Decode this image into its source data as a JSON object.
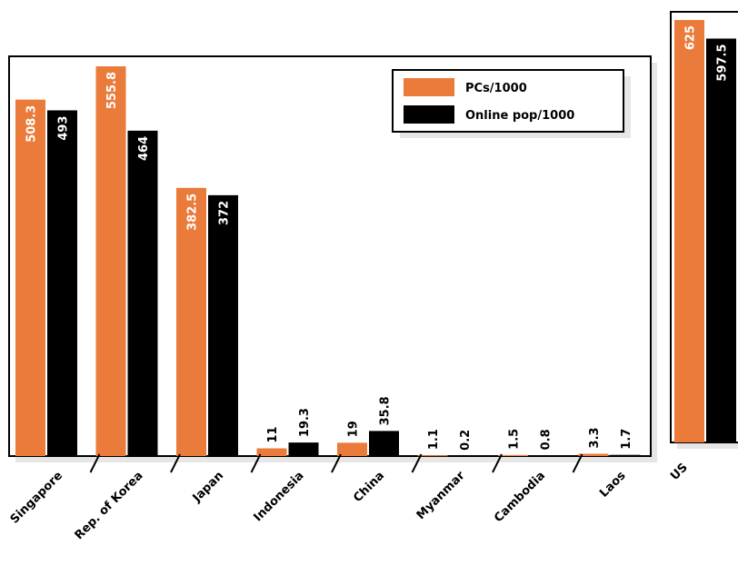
{
  "chart_data": [
    {
      "type": "bar",
      "categories": [
        "Singapore",
        "Rep. of Korea",
        "Japan",
        "Indonesia",
        "China",
        "Myanmar",
        "Cambodia",
        "Laos"
      ],
      "series": [
        {
          "name": "PCs/1000",
          "color": "#ea7b3a",
          "values": [
            508.3,
            555.8,
            382.5,
            11,
            19,
            1.1,
            1.5,
            3.3
          ]
        },
        {
          "name": "Online pop/1000",
          "color": "#000000",
          "values": [
            493,
            464,
            372,
            19.3,
            35.8,
            0.2,
            0.8,
            1.7
          ]
        }
      ],
      "value_labels": [
        [
          "508.3",
          "555.8",
          "382.5",
          "11",
          "19",
          "1.1",
          "1.5",
          "3.3"
        ],
        [
          "493",
          "464",
          "372",
          "19.3",
          "35.8",
          "0.2",
          "0.8",
          "1.7"
        ]
      ],
      "ylim": [
        0,
        600
      ],
      "grid": false,
      "legend": "top-right"
    },
    {
      "type": "bar",
      "categories": [
        "US"
      ],
      "series": [
        {
          "name": "PCs/1000",
          "color": "#ea7b3a",
          "values": [
            625
          ]
        },
        {
          "name": "Online pop/1000",
          "color": "#000000",
          "values": [
            597.5
          ]
        }
      ],
      "value_labels": [
        [
          "625"
        ],
        [
          "597.5"
        ]
      ],
      "ylim": [
        0,
        650
      ],
      "grid": false
    }
  ]
}
